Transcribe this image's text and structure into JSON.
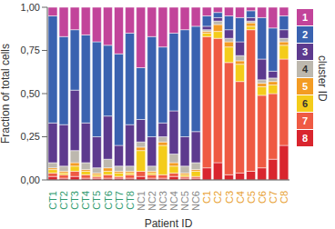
{
  "chart_data": {
    "type": "bar",
    "stacked": true,
    "x_label": "Patient ID",
    "y_label": "Fraction of total cells",
    "legend_title": "cluster ID",
    "legend": "right",
    "categories": [
      "CT1",
      "CT2",
      "CT3",
      "CT4",
      "CT5",
      "CT6",
      "CT7",
      "CT8",
      "NC1",
      "NC2",
      "NC3",
      "NC4",
      "NC5",
      "NC6",
      "C1",
      "C2",
      "C3",
      "C4",
      "C5",
      "C6",
      "C7",
      "C8"
    ],
    "ylim": [
      0,
      1
    ],
    "yticks": [
      {
        "value": 0,
        "label": "0,00"
      },
      {
        "value": 0.25,
        "label": "0,25"
      },
      {
        "value": 0.5,
        "label": "0,50"
      },
      {
        "value": 0.75,
        "label": "0,75"
      },
      {
        "value": 1,
        "label": "1,00"
      }
    ],
    "series": [
      {
        "name": "1",
        "color": "#c2449a",
        "values": [
          0.05,
          0.17,
          0.13,
          0.16,
          0.2,
          0.22,
          0.27,
          0.15,
          0.35,
          0.17,
          0.23,
          0.15,
          0.13,
          0.11,
          0.05,
          0.03,
          0.05,
          0.06,
          0.02,
          0.06,
          0.12,
          0.05
        ]
      },
      {
        "name": "2",
        "color": "#3a62b0",
        "values": [
          0.62,
          0.51,
          0.35,
          0.51,
          0.55,
          0.41,
          0.53,
          0.53,
          0.3,
          0.58,
          0.44,
          0.45,
          0.62,
          0.61,
          0.06,
          0.03,
          0.08,
          0.14,
          0.04,
          0.24,
          0.25,
          0.08
        ]
      },
      {
        "name": "3",
        "color": "#5d3a8e",
        "values": [
          0.23,
          0.24,
          0.35,
          0.23,
          0.18,
          0.25,
          0.12,
          0.24,
          0.13,
          0.17,
          0.08,
          0.25,
          0.17,
          0.18,
          0.02,
          0.02,
          0.05,
          0.08,
          0.02,
          0.12,
          0.04,
          0.05
        ]
      },
      {
        "name": "4",
        "color": "#bdb8ae",
        "values": [
          0.03,
          0.03,
          0.07,
          0.04,
          0.03,
          0.05,
          0.03,
          0.03,
          0.03,
          0.03,
          0.03,
          0.05,
          0.04,
          0.04,
          0.01,
          0.02,
          0.02,
          0.03,
          0.01,
          0.02,
          0.02,
          0.02
        ]
      },
      {
        "name": "5",
        "color": "#f39c23",
        "values": [
          0.01,
          0.01,
          0.02,
          0.01,
          0.01,
          0.02,
          0.01,
          0.01,
          0.02,
          0.01,
          0.02,
          0.02,
          0.01,
          0.01,
          0.01,
          0.04,
          0.03,
          0.02,
          0.02,
          0.02,
          0.02,
          0.02
        ]
      },
      {
        "name": "6",
        "color": "#f4cc1b",
        "values": [
          0.02,
          0.01,
          0.03,
          0.02,
          0.01,
          0.02,
          0.02,
          0.01,
          0.12,
          0.01,
          0.17,
          0.04,
          0.01,
          0.03,
          0.02,
          0.04,
          0.09,
          0.1,
          0.02,
          0.05,
          0.05,
          0.08
        ]
      },
      {
        "name": "7",
        "color": "#ef5a43",
        "values": [
          0.02,
          0.02,
          0.03,
          0.02,
          0.01,
          0.02,
          0.01,
          0.02,
          0.03,
          0.02,
          0.02,
          0.02,
          0.01,
          0.01,
          0.76,
          0.72,
          0.65,
          0.53,
          0.82,
          0.42,
          0.38,
          0.5
        ]
      },
      {
        "name": "8",
        "color": "#d9252e",
        "values": [
          0.02,
          0.01,
          0.02,
          0.01,
          0.01,
          0.01,
          0.01,
          0.01,
          0.02,
          0.01,
          0.01,
          0.02,
          0.01,
          0.01,
          0.07,
          0.1,
          0.03,
          0.04,
          0.05,
          0.07,
          0.12,
          0.2
        ]
      }
    ]
  }
}
